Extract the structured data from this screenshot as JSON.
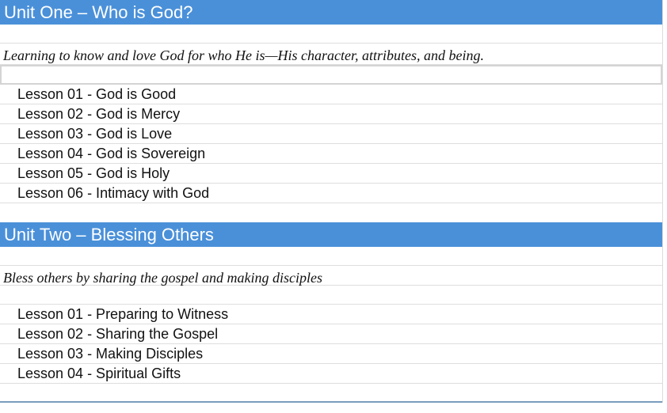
{
  "units": [
    {
      "title": "Unit One – Who is God?",
      "description": "Learning to know and love God for who He is—His character, attributes, and being.",
      "lessons": [
        "Lesson 01 - God is Good",
        "Lesson 02 - God is Mercy",
        "Lesson 03 - God is Love",
        "Lesson 04 - God is Sovereign",
        "Lesson 05 - God is Holy",
        "Lesson 06 - Intimacy with God"
      ]
    },
    {
      "title": "Unit Two – Blessing Others",
      "description": "Bless others by sharing the gospel and making disciples",
      "lessons": [
        "Lesson 01 - Preparing to Witness",
        "Lesson 02 - Sharing the Gospel",
        "Lesson 03 - Making Disciples",
        "Lesson 04 - Spiritual Gifts"
      ]
    }
  ],
  "colors": {
    "header": "#4a90d9"
  }
}
